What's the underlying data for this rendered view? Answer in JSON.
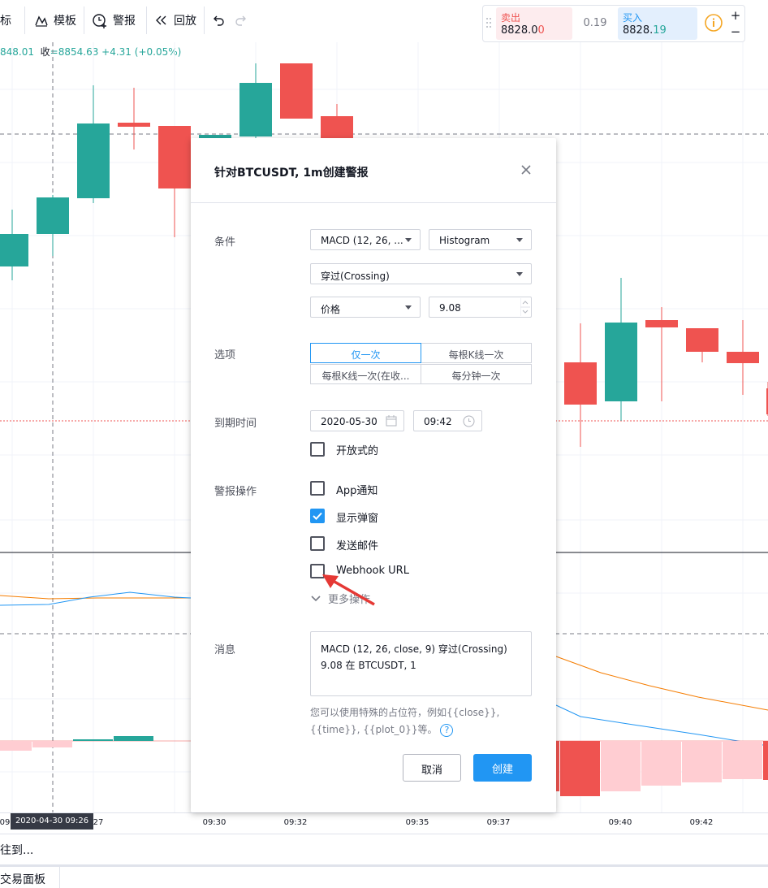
{
  "toolbar": {
    "indicators_label": "指标",
    "templates_label": "模板",
    "alerts_label": "警报",
    "replay_label": "回放"
  },
  "trade": {
    "sell_label": "卖出",
    "sell_price_main": "8828.0",
    "sell_price_tail": "0",
    "spread": "0.19",
    "buy_label": "买入",
    "buy_price_main": "8828.",
    "buy_price_tail": "19",
    "plus": "+",
    "minus": "−"
  },
  "ohlc": {
    "low_partial": "848.01",
    "close_label": "收",
    "close_value": "=8854.63",
    "change": "+4.31 (+0.05%)"
  },
  "colors": {
    "up": "#26a69a",
    "down": "#ef5350",
    "accent": "#2196f3",
    "hist_light": "#ffcdd2"
  },
  "dialog": {
    "title": "针对BTCUSDT, 1m创建警报",
    "condition_label": "条件",
    "indicator_select": "MACD (12, 26, ...",
    "plot_select": "Histogram",
    "crossing_select": "穿过(Crossing)",
    "value_type_select": "价格",
    "value_input": "9.08",
    "options_label": "选项",
    "options": [
      "仅一次",
      "每根K线一次",
      "每根K线一次(在收...",
      "每分钟一次"
    ],
    "expiration_label": "到期时间",
    "expiration_date": "2020-05-30",
    "expiration_time": "09:42",
    "open_ended_label": "开放式的",
    "actions_label": "警报操作",
    "action_app": "App通知",
    "action_popup": "显示弹窗",
    "action_email": "发送邮件",
    "action_webhook": "Webhook URL",
    "more_actions": "更多操作",
    "message_label": "消息",
    "message_line1": "MACD (12, 26, close, 9) 穿过(Crossing)",
    "message_line2": "9.08 在 BTCUSDT, 1",
    "hint_line1": "您可以使用特殊的占位符，例如{{close}},",
    "hint_line2": "{{time}}, {{plot_0}}等。",
    "help": "?",
    "cancel": "取消",
    "create": "创建"
  },
  "time_axis": {
    "crosshair_label": "2020-04-30   09:26",
    "ticks": [
      "09",
      "27",
      "09:30",
      "09:32",
      "09:35",
      "09:37",
      "09:40",
      "09:42"
    ]
  },
  "goto_label": "往到...",
  "bottom_tab": "交易面板"
}
